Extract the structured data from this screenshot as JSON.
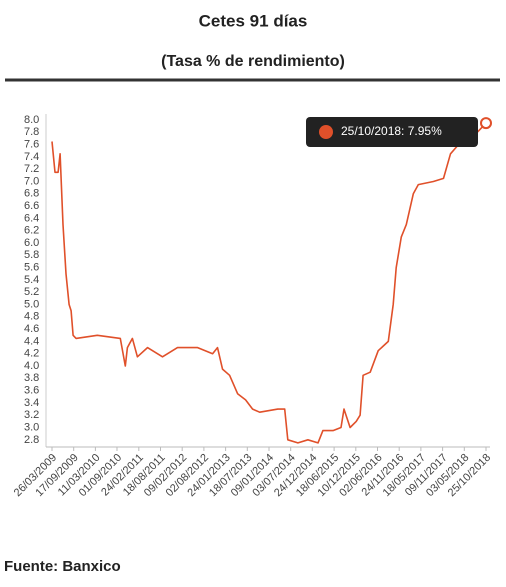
{
  "chart_data": {
    "type": "line",
    "title": "Cetes 91 días",
    "subtitle": "(Tasa % de rendimiento)",
    "source": "Fuente: Banxico",
    "tooltip": "25/10/2018: 7.95%",
    "color": "#e0502a",
    "x": [
      "26/03/2009",
      "19/04/2009",
      "14/05/2009",
      "30/05/2009",
      "23/06/2009",
      "17/07/2009",
      "11/08/2009",
      "27/08/2009",
      "12/09/2009",
      "06/10/2009",
      "26/03/2010",
      "28/09/2010",
      "07/11/2010",
      "24/11/2010",
      "03/01/2011",
      "13/02/2011",
      "05/05/2011",
      "03/09/2011",
      "02/01/2012",
      "12/06/2012",
      "11/10/2012",
      "20/11/2012",
      "30/12/2012",
      "25/02/2013",
      "01/05/2013",
      "04/07/2013",
      "30/08/2013",
      "26/10/2013",
      "21/03/2014",
      "16/05/2014",
      "10/06/2014",
      "30/08/2014",
      "19/11/2014",
      "08/02/2015",
      "20/03/2015",
      "09/06/2015",
      "13/08/2015",
      "06/09/2015",
      "25/10/2015",
      "13/12/2015",
      "14/01/2016",
      "07/02/2016",
      "04/04/2016",
      "08/06/2016",
      "28/08/2016",
      "07/10/2016",
      "31/10/2016",
      "11/12/2016",
      "20/01/2017",
      "18/03/2017",
      "27/04/2017",
      "27/08/2017",
      "16/11/2017",
      "12/01/2018",
      "17/03/2018",
      "06/06/2018",
      "25/10/2018"
    ],
    "values": [
      7.65,
      7.15,
      7.15,
      7.45,
      6.3,
      5.5,
      5.0,
      4.9,
      4.5,
      4.45,
      4.5,
      4.45,
      4.0,
      4.3,
      4.45,
      4.15,
      4.3,
      4.15,
      4.3,
      4.3,
      4.2,
      4.3,
      3.95,
      3.85,
      3.55,
      3.45,
      3.3,
      3.25,
      3.3,
      3.3,
      2.8,
      2.75,
      2.8,
      2.75,
      2.95,
      2.95,
      3.0,
      3.3,
      3.0,
      3.1,
      3.2,
      3.85,
      3.9,
      4.25,
      4.4,
      5.0,
      5.6,
      6.1,
      6.3,
      6.8,
      6.95,
      7.0,
      7.05,
      7.45,
      7.6,
      7.65,
      7.95
    ],
    "xlim": [
      "26/03/2009",
      "25/10/2018"
    ],
    "xticks": [
      "26/03/2009",
      "17/09/2009",
      "11/03/2010",
      "01/09/2010",
      "24/02/2011",
      "18/08/2011",
      "09/02/2012",
      "02/08/2012",
      "24/01/2013",
      "18/07/2013",
      "09/01/2014",
      "03/07/2014",
      "24/12/2014",
      "18/06/2015",
      "10/12/2015",
      "02/06/2016",
      "24/11/2016",
      "18/05/2017",
      "09/11/2017",
      "03/05/2018",
      "25/10/2018"
    ],
    "ylim": [
      2.7,
      8.0
    ],
    "yticks": [
      {
        "value": 8,
        "label": "8.0"
      },
      7.8,
      7.6,
      7.4,
      7.2,
      {
        "value": 7,
        "label": "7.0"
      },
      6.8,
      6.6,
      6.4,
      6.2,
      {
        "value": 6,
        "label": "6.0"
      },
      5.8,
      5.6,
      5.4,
      5.2,
      {
        "value": 5,
        "label": "5.0"
      },
      4.8,
      4.6,
      4.4,
      4.2,
      {
        "value": 4,
        "label": "4.0"
      },
      3.8,
      3.6,
      3.4,
      3.2,
      {
        "value": 3,
        "label": "3.0"
      },
      2.8
    ]
  }
}
